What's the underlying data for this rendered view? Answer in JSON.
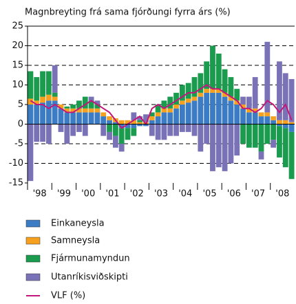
{
  "chart_data": {
    "type": "stacked-bar-line",
    "title": "Magnbreyting frá sama fjórðungi fyrra árs (%)",
    "categories": [
      "'98",
      null,
      null,
      null,
      "'99",
      null,
      null,
      null,
      "'00",
      null,
      null,
      null,
      "'01",
      null,
      null,
      null,
      "'02",
      null,
      null,
      null,
      "'03",
      null,
      null,
      null,
      "'04",
      null,
      null,
      null,
      "'05",
      null,
      null,
      null,
      "'06",
      null,
      null,
      null,
      "'07",
      null,
      null,
      null,
      "'08",
      null,
      null,
      null
    ],
    "series": [
      {
        "name": "Einkaneysla",
        "color": "#3b7cc4",
        "values": [
          5,
          5,
          5.5,
          6,
          6,
          4,
          3,
          3,
          3,
          3,
          3,
          3,
          2,
          1,
          0.5,
          -1,
          -1,
          -1,
          -0.5,
          -0.5,
          1,
          2,
          3,
          3,
          4,
          5,
          5.5,
          6,
          7,
          8,
          8,
          8,
          7,
          6,
          5,
          4,
          3,
          3,
          2,
          2,
          1,
          -0.5,
          -1,
          -2
        ]
      },
      {
        "name": "Samneysla",
        "color": "#f5a01e",
        "values": [
          1.5,
          1,
          1.5,
          1.5,
          1,
          1,
          1,
          1,
          1,
          1,
          1,
          1,
          1,
          1,
          1,
          1,
          1,
          1,
          0.5,
          0.5,
          1,
          1,
          1,
          1,
          1,
          1,
          1,
          1,
          1,
          1,
          1,
          1,
          1,
          1,
          1,
          1,
          1,
          1,
          1,
          1,
          1,
          1,
          1,
          0.5
        ]
      },
      {
        "name": "Fjármunamyndun",
        "color": "#1a9b4e",
        "values": [
          7,
          6,
          6.5,
          6,
          1,
          0,
          0.5,
          1,
          2,
          3,
          2,
          1,
          0,
          -2,
          -3,
          -4,
          -3,
          -2,
          0.5,
          0,
          1,
          2,
          2,
          3,
          3,
          4,
          4,
          5,
          5,
          7,
          11,
          9,
          6,
          5,
          3,
          -5,
          -6,
          -6,
          -7,
          -5,
          -4,
          -8,
          -10,
          -12
        ]
      },
      {
        "name": "Utanríkisviðskipti",
        "color": "#7a72b6",
        "values": [
          -14.5,
          -4.5,
          -4.5,
          -5,
          7,
          -2,
          -5,
          -3,
          -2,
          -3,
          1,
          1,
          -3,
          -2,
          -3,
          -2,
          0,
          2,
          1,
          2,
          -3,
          -4,
          -4,
          -3,
          -3,
          -2,
          -2,
          -3,
          -7,
          -5,
          -12,
          -11,
          -12,
          -10,
          -8,
          2,
          3,
          8,
          -2,
          18,
          -2,
          15,
          12,
          11
        ]
      }
    ],
    "line": {
      "name": "VLF (%)",
      "color": "#c2177a",
      "values": [
        6,
        5,
        5,
        4,
        5,
        4,
        3,
        3,
        4,
        5,
        6,
        5,
        4,
        3,
        1,
        -1,
        0,
        1,
        2,
        0,
        4,
        5,
        4,
        5,
        6,
        7,
        8,
        8,
        9,
        10,
        9,
        9,
        8,
        7,
        6,
        4,
        4,
        3,
        4,
        6,
        5,
        3,
        5,
        1
      ]
    },
    "ylim": [
      -15,
      25
    ],
    "yticks": [
      -15,
      -10,
      -5,
      0,
      5,
      10,
      15,
      20,
      25
    ],
    "grid": true
  }
}
